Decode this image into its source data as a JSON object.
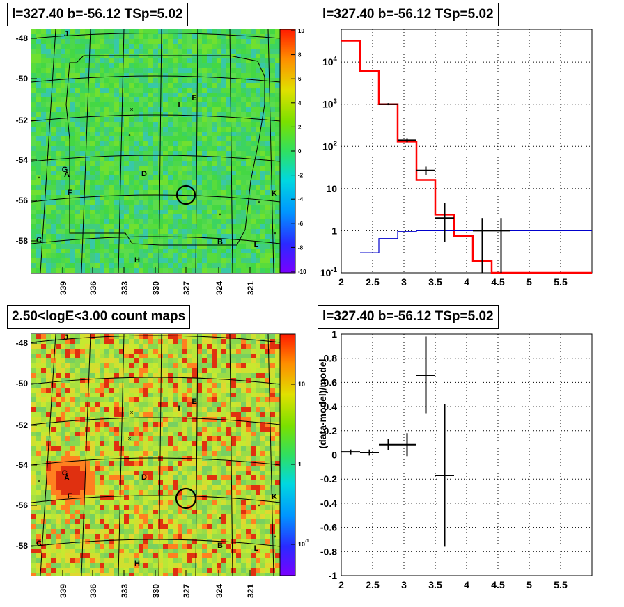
{
  "panels": {
    "tl_title": "l=327.40 b=-56.12 TSp=5.02",
    "tr_title": "l=327.40 b=-56.12 TSp=5.02",
    "bl_title": "2.50<logE<3.00 count maps",
    "br_title": "l=327.40 b=-56.12 TSp=5.02"
  },
  "map_labels": [
    "J",
    "I",
    "E",
    "G",
    "A",
    "D",
    "F",
    "K",
    "C",
    "B",
    "L",
    "H"
  ],
  "chart_data": [
    {
      "type": "heatmap",
      "title": "l=327.40 b=-56.12 TSp=5.02",
      "x_ticks": [
        "339",
        "336",
        "333",
        "330",
        "327",
        "324",
        "321"
      ],
      "y_ticks": [
        "-48",
        "-50",
        "-52",
        "-54",
        "-56",
        "-58"
      ],
      "colorbar_ticks": [
        "10",
        "8",
        "6",
        "4",
        "2",
        "0",
        "-2",
        "-4",
        "-6",
        "-8",
        "-10"
      ],
      "colorbar_range": [
        -10,
        10
      ]
    },
    {
      "type": "line",
      "title": "l=327.40 b=-56.12 TSp=5.02",
      "yscale": "log",
      "xlim": [
        2,
        6
      ],
      "ylim": [
        0.1,
        60000
      ],
      "x_ticks": [
        "2",
        "2.5",
        "3",
        "3.5",
        "4",
        "4.5",
        "5",
        "5.5"
      ],
      "y_ticks": [
        "10^-1",
        "1",
        "10",
        "10^2",
        "10^3",
        "10^4"
      ],
      "series": [
        {
          "color": "#ff0000",
          "step_edges": [
            2.0,
            2.3,
            2.6,
            2.9,
            3.2,
            3.5,
            3.8,
            4.1,
            4.4,
            6.0
          ],
          "values": [
            32000,
            6200,
            1000,
            130,
            16,
            2.4,
            0.75,
            0.19,
            0.1
          ]
        },
        {
          "color": "#0000cc",
          "step_edges": [
            2.3,
            2.6,
            2.9,
            3.2,
            6.0
          ],
          "values": [
            0.3,
            0.65,
            0.95,
            1.0
          ]
        },
        {
          "color": "#000000",
          "points": [
            {
              "x": 2.75,
              "xerr": 0.15,
              "y": 1000,
              "ylo": 950,
              "yhi": 1060
            },
            {
              "x": 3.05,
              "xerr": 0.15,
              "y": 140,
              "ylo": 125,
              "yhi": 157
            },
            {
              "x": 3.35,
              "xerr": 0.15,
              "y": 27,
              "ylo": 21,
              "yhi": 33
            },
            {
              "x": 3.65,
              "xerr": 0.15,
              "y": 2,
              "ylo": 0.55,
              "yhi": 4.5
            },
            {
              "x": 4.25,
              "xerr": 0.15,
              "y": 1,
              "ylo": 0.1,
              "yhi": 2
            },
            {
              "x": 4.55,
              "xerr": 0.15,
              "y": 1,
              "ylo": 0.1,
              "yhi": 2
            }
          ]
        }
      ]
    },
    {
      "type": "heatmap",
      "title": "2.50<logE<3.00 count maps",
      "x_ticks": [
        "339",
        "336",
        "333",
        "330",
        "327",
        "324",
        "321"
      ],
      "y_ticks": [
        "-48",
        "-50",
        "-52",
        "-54",
        "-56",
        "-58"
      ],
      "colorbar_ticks": [
        "10",
        "1",
        "10^-1"
      ],
      "colorbar_scale": "log"
    },
    {
      "type": "scatter",
      "title": "l=327.40 b=-56.12 TSp=5.02",
      "ylabel": "(data-model)/model",
      "xlim": [
        2,
        6
      ],
      "ylim": [
        -1,
        1
      ],
      "x_ticks": [
        "2",
        "2.5",
        "3",
        "3.5",
        "4",
        "4.5",
        "5",
        "5.5"
      ],
      "y_ticks": [
        "1",
        "0.8",
        "0.6",
        "0.4",
        "0.2",
        "0",
        "-0.2",
        "-0.4",
        "-0.6",
        "-0.8",
        "-1"
      ],
      "points": [
        {
          "x": 2.15,
          "xerr": 0.15,
          "y": 0.025,
          "ylo": 0.005,
          "yhi": 0.045
        },
        {
          "x": 2.45,
          "xerr": 0.15,
          "y": 0.02,
          "ylo": -0.005,
          "yhi": 0.045
        },
        {
          "x": 2.75,
          "xerr": 0.15,
          "y": 0.085,
          "ylo": 0.04,
          "yhi": 0.13
        },
        {
          "x": 3.05,
          "xerr": 0.15,
          "y": 0.085,
          "ylo": -0.01,
          "yhi": 0.18
        },
        {
          "x": 3.35,
          "xerr": 0.15,
          "y": 0.66,
          "ylo": 0.34,
          "yhi": 0.98
        },
        {
          "x": 3.65,
          "xerr": 0.15,
          "y": -0.17,
          "ylo": -0.76,
          "yhi": 0.42
        }
      ]
    }
  ]
}
